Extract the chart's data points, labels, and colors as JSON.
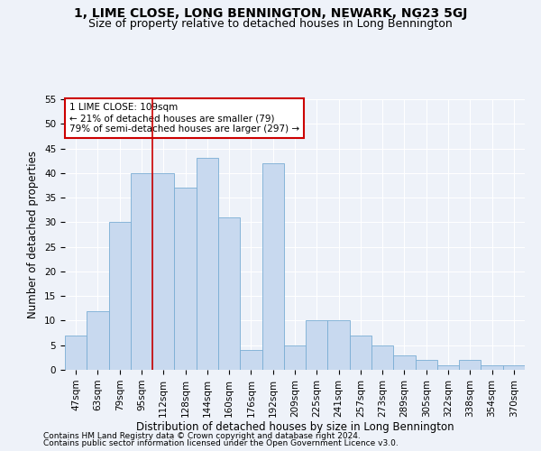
{
  "title": "1, LIME CLOSE, LONG BENNINGTON, NEWARK, NG23 5GJ",
  "subtitle": "Size of property relative to detached houses in Long Bennington",
  "xlabel": "Distribution of detached houses by size in Long Bennington",
  "ylabel": "Number of detached properties",
  "categories": [
    "47sqm",
    "63sqm",
    "79sqm",
    "95sqm",
    "112sqm",
    "128sqm",
    "144sqm",
    "160sqm",
    "176sqm",
    "192sqm",
    "209sqm",
    "225sqm",
    "241sqm",
    "257sqm",
    "273sqm",
    "289sqm",
    "305sqm",
    "322sqm",
    "338sqm",
    "354sqm",
    "370sqm"
  ],
  "values": [
    7,
    12,
    30,
    40,
    40,
    37,
    43,
    31,
    4,
    42,
    5,
    10,
    10,
    7,
    5,
    3,
    2,
    1,
    2,
    1,
    1
  ],
  "bar_color": "#c8d9ef",
  "bar_edge_color": "#7aadd4",
  "red_line_index": 4,
  "annotation_line1": "1 LIME CLOSE: 109sqm",
  "annotation_line2": "← 21% of detached houses are smaller (79)",
  "annotation_line3": "79% of semi-detached houses are larger (297) →",
  "annotation_box_color": "#ffffff",
  "annotation_box_edge": "#cc0000",
  "ylim": [
    0,
    55
  ],
  "yticks": [
    0,
    5,
    10,
    15,
    20,
    25,
    30,
    35,
    40,
    45,
    50,
    55
  ],
  "footer1": "Contains HM Land Registry data © Crown copyright and database right 2024.",
  "footer2": "Contains public sector information licensed under the Open Government Licence v3.0.",
  "bg_color": "#eef2f9",
  "grid_color": "#ffffff",
  "title_fontsize": 10,
  "subtitle_fontsize": 9,
  "axis_label_fontsize": 8.5,
  "tick_fontsize": 7.5,
  "annotation_fontsize": 7.5,
  "footer_fontsize": 6.5
}
